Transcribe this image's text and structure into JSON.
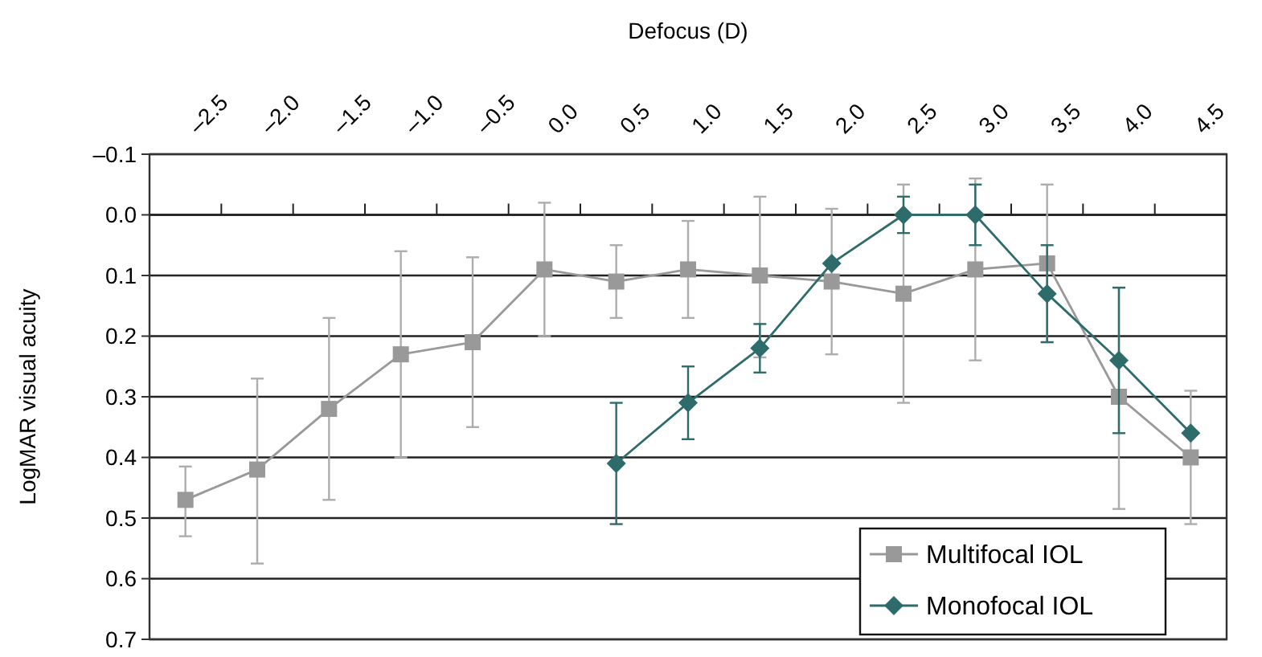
{
  "chart_data": {
    "type": "line",
    "xlabel": "Defocus (D)",
    "ylabel": "LogMAR visual acuity",
    "categories": [
      "–2.5",
      "–2.0",
      "–1.5",
      "–1.0",
      "–0.5",
      "0.0",
      "0.5",
      "1.0",
      "1.5",
      "2.0",
      "2.5",
      "3.0",
      "3.5",
      "4.0",
      "4.5"
    ],
    "ylim": [
      0.7,
      -0.1
    ],
    "yticks": [
      {
        "value": -0.1,
        "label": "–0.1"
      },
      {
        "value": 0,
        "label": "0.0"
      },
      0.1,
      0.2,
      0.3,
      0.4,
      0.5,
      0.6,
      0.7
    ],
    "grid": "y",
    "legend": "bottom right",
    "line_style": "solid",
    "series": [
      {
        "name": "Multifocal IOL",
        "color": "#999999",
        "marker": "square",
        "values": [
          0.47,
          0.42,
          0.32,
          0.23,
          0.21,
          0.09,
          0.11,
          0.09,
          0.1,
          0.11,
          0.13,
          0.09,
          0.08,
          0.3,
          0.4
        ],
        "errors": [
          [
            0.415,
            0.53
          ],
          [
            0.27,
            0.575
          ],
          [
            0.17,
            0.47
          ],
          [
            0.06,
            0.4
          ],
          [
            0.07,
            0.35
          ],
          [
            -0.02,
            0.2
          ],
          [
            0.05,
            0.17
          ],
          [
            0.01,
            0.17
          ],
          [
            -0.03,
            0.235
          ],
          [
            -0.01,
            0.23
          ],
          [
            -0.05,
            0.31
          ],
          [
            -0.06,
            0.24
          ],
          [
            -0.05,
            0.21
          ],
          [
            0.12,
            0.485
          ],
          [
            0.29,
            0.51
          ]
        ]
      },
      {
        "name": "Monofocal IOL",
        "color": "#2e6b6b",
        "marker": "diamond",
        "values": [
          null,
          null,
          null,
          null,
          null,
          null,
          0.41,
          0.31,
          0.22,
          0.08,
          0,
          0,
          0.13,
          0.24,
          0.36
        ],
        "errors": [
          null,
          null,
          null,
          null,
          null,
          null,
          [
            0.31,
            0.51
          ],
          [
            0.25,
            0.37
          ],
          [
            0.18,
            0.26
          ],
          null,
          [
            -0.03,
            0.03
          ],
          [
            -0.05,
            0.05
          ],
          [
            0.05,
            0.21
          ],
          [
            0.12,
            0.36
          ],
          null
        ]
      }
    ]
  }
}
